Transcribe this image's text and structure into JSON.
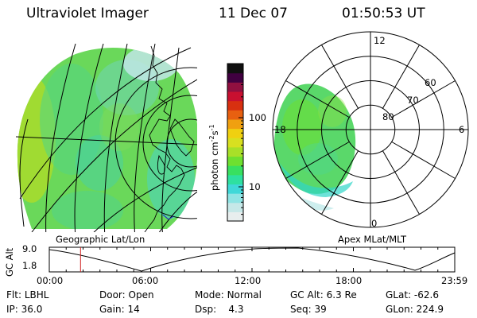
{
  "header": {
    "instrument": "Ultraviolet Imager",
    "date": "11 Dec 07",
    "time": "01:50:53 UT"
  },
  "colorbar": {
    "unit_label": "photon cm",
    "unit_exp1": "-2",
    "unit_mid": "s",
    "unit_exp2": "-1",
    "ticks": [
      {
        "label": "100",
        "value": 100
      },
      {
        "label": "10",
        "value": 10
      }
    ],
    "colors": [
      "#e8eeee",
      "#c6e8e8",
      "#8fe4e4",
      "#3fd8d8",
      "#2ee0a0",
      "#38e060",
      "#6ee030",
      "#a8e028",
      "#d8e020",
      "#f0d010",
      "#f0a010",
      "#e86010",
      "#d83010",
      "#c81030",
      "#901040",
      "#400040",
      "#101010"
    ]
  },
  "left_panel": {
    "label": "Geographic Lat/Lon"
  },
  "right_panel": {
    "label": "Apex MLat/MLT",
    "mlt_labels": [
      {
        "text": "12",
        "angle": 0
      },
      {
        "text": "6",
        "angle": 90
      },
      {
        "text": "0",
        "angle": 180
      },
      {
        "text": "18",
        "angle": 270
      }
    ],
    "lat_labels": [
      {
        "text": "80",
        "lat": 80
      },
      {
        "text": "70",
        "lat": 70
      },
      {
        "text": "60",
        "lat": 60
      }
    ]
  },
  "timeline": {
    "ylabel": "GC Alt",
    "y_ticks": [
      "9.0",
      "1.8"
    ],
    "x_ticks": [
      "00:00",
      "06:00",
      "12:00",
      "18:00",
      "23:59"
    ],
    "marker_time_hours": 1.85,
    "marker_color": "#d02020"
  },
  "info": {
    "row1": [
      {
        "label": "Flt:",
        "value": "LBHL"
      },
      {
        "label": "Door:",
        "value": "Open"
      },
      {
        "label": "Mode:",
        "value": "Normal"
      },
      {
        "label": "GC Alt:",
        "value": "6.3 Re"
      },
      {
        "label": "GLat:",
        "value": "-62.6"
      }
    ],
    "row2": [
      {
        "label": "IP:",
        "value": "36.0"
      },
      {
        "label": "Gain:",
        "value": "14"
      },
      {
        "label": "Dsp:",
        "value": "4.3"
      },
      {
        "label": "Seq:",
        "value": "39"
      },
      {
        "label": "GLon:",
        "value": "224.9"
      }
    ]
  }
}
